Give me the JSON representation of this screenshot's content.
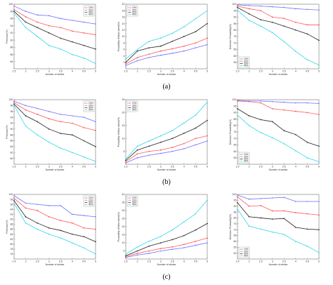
{
  "figure": {
    "row_labels": [
      "(a)",
      "(b)",
      "(c)"
    ]
  },
  "legend_entries": [
    "10%",
    "20%",
    "30%",
    "40%"
  ],
  "series_colors": [
    "#6f6fff",
    "#ff5a5a",
    "#202020",
    "#33d6e6"
  ],
  "chart_data": [
    {
      "type": "line",
      "row": 0,
      "col": 0,
      "xlabel": "Number of strides",
      "ylabel": "Precision(%)",
      "x": [
        1.5,
        2,
        2.5,
        3,
        3.5,
        4,
        4.5,
        5
      ],
      "xticks": [
        1.5,
        2,
        2.5,
        3,
        3.5,
        4,
        4.5,
        5
      ],
      "ylim": [
        82,
        100
      ],
      "yticks": [
        84,
        86,
        88,
        90,
        92,
        94,
        96,
        98,
        100
      ],
      "grid": false,
      "legend": "top-right",
      "series": [
        {
          "name": "10%",
          "values": [
            99.5,
            98,
            97,
            96.8,
            96,
            95.5,
            95,
            94.5
          ]
        },
        {
          "name": "20%",
          "values": [
            98.5,
            96.5,
            95,
            94,
            93.5,
            92.5,
            92,
            91.5
          ]
        },
        {
          "name": "30%",
          "values": [
            98,
            95,
            93.5,
            92,
            90.5,
            89.5,
            88.5,
            87.5
          ]
        },
        {
          "name": "40%",
          "values": [
            97.5,
            93.5,
            91,
            88.5,
            87.5,
            86,
            85,
            83.5
          ]
        }
      ]
    },
    {
      "type": "line",
      "row": 0,
      "col": 1,
      "xlabel": "Number of strides",
      "ylabel": "Probability of false alarm(%)",
      "x": [
        1.5,
        2,
        2.5,
        3,
        3.5,
        4,
        4.5,
        5
      ],
      "xticks": [
        1.5,
        2,
        2.5,
        3,
        3.5,
        4,
        4.5,
        5
      ],
      "ylim": [
        0,
        20
      ],
      "yticks": [
        2,
        4,
        6,
        8,
        10,
        12,
        14,
        16,
        18,
        20
      ],
      "grid": false,
      "legend": "top-left",
      "series": [
        {
          "name": "10%",
          "values": [
            1,
            2.5,
            3.5,
            4.2,
            4.8,
            5.5,
            6.5,
            7.5
          ]
        },
        {
          "name": "20%",
          "values": [
            1.5,
            3.5,
            4.5,
            5.5,
            6.2,
            7,
            8,
            9.5
          ]
        },
        {
          "name": "30%",
          "values": [
            2,
            5.5,
            6.5,
            7,
            8.5,
            10,
            11.5,
            14
          ]
        },
        {
          "name": "40%",
          "values": [
            3,
            6,
            8.5,
            9.5,
            11,
            13,
            15.5,
            18
          ]
        }
      ]
    },
    {
      "type": "line",
      "row": 0,
      "col": 2,
      "xlabel": "Number of strides",
      "ylabel": "Detection Probability(%)",
      "x": [
        1.5,
        2,
        2.5,
        3,
        3.5,
        4,
        4.5,
        5
      ],
      "xticks": [
        1.5,
        2,
        2.5,
        3,
        3.5,
        4,
        4.5,
        5
      ],
      "ylim": [
        50,
        100
      ],
      "yticks": [
        55,
        60,
        65,
        70,
        75,
        80,
        85,
        90,
        95,
        100
      ],
      "grid": false,
      "legend": "bottom-left",
      "series": [
        {
          "name": "10%",
          "values": [
            99.5,
            99,
            98.5,
            98,
            97.5,
            96.5,
            96,
            95.5
          ]
        },
        {
          "name": "20%",
          "values": [
            98.5,
            96.5,
            95,
            90,
            89,
            86,
            84,
            84
          ]
        },
        {
          "name": "30%",
          "values": [
            97.5,
            92.5,
            88,
            86,
            83,
            80,
            77,
            72
          ]
        },
        {
          "name": "40%",
          "values": [
            95.5,
            87.5,
            83,
            78,
            71,
            63.5,
            57,
            53
          ]
        }
      ]
    },
    {
      "type": "line",
      "row": 1,
      "col": 0,
      "xlabel": "Number of strides",
      "ylabel": "Precision(%)",
      "x": [
        1.5,
        2,
        2.5,
        3,
        3.5,
        4,
        4.5,
        5
      ],
      "xticks": [
        1.5,
        2,
        2.5,
        3,
        3.5,
        4,
        4.5,
        5
      ],
      "ylim": [
        78,
        100
      ],
      "yticks": [
        80,
        82,
        84,
        86,
        88,
        90,
        92,
        94,
        96,
        98,
        100
      ],
      "grid": false,
      "legend": "top-right",
      "series": [
        {
          "name": "10%",
          "values": [
            99.5,
            98,
            97,
            96,
            95,
            94.5,
            94,
            92.5
          ]
        },
        {
          "name": "20%",
          "values": [
            99,
            96.5,
            95,
            93.5,
            92.5,
            92,
            90.5,
            89.5
          ]
        },
        {
          "name": "30%",
          "values": [
            98.5,
            94.5,
            92.5,
            90,
            88.5,
            88,
            86,
            84
          ]
        },
        {
          "name": "40%",
          "values": [
            98,
            91,
            88,
            85.5,
            83.5,
            82,
            80.5,
            79
          ]
        }
      ]
    },
    {
      "type": "line",
      "row": 1,
      "col": 1,
      "xlabel": "Number of strides",
      "ylabel": "Probability of false alarm(%)",
      "x": [
        1.5,
        2,
        2.5,
        3,
        3.5,
        4,
        4.5,
        5
      ],
      "xticks": [
        1.5,
        2,
        2.5,
        3,
        3.5,
        4,
        4.5,
        5
      ],
      "ylim": [
        0,
        25
      ],
      "yticks": [
        5,
        10,
        15,
        20,
        25
      ],
      "grid": false,
      "legend": "top-left",
      "series": [
        {
          "name": "10%",
          "values": [
            0.5,
            2.5,
            3.5,
            4.2,
            5,
            6,
            7.5,
            9
          ]
        },
        {
          "name": "20%",
          "values": [
            1,
            4,
            5,
            5.5,
            6.5,
            8,
            10,
            11
          ]
        },
        {
          "name": "30%",
          "values": [
            1.5,
            5.5,
            7,
            8.5,
            10,
            12,
            14,
            17
          ]
        },
        {
          "name": "40%",
          "values": [
            2,
            7,
            9,
            11,
            13,
            16,
            19,
            24
          ]
        }
      ]
    },
    {
      "type": "line",
      "row": 1,
      "col": 2,
      "xlabel": "Number of strides",
      "ylabel": "Detection Probability(%)",
      "x": [
        1.5,
        2,
        2.5,
        3,
        3.5,
        4,
        4.5,
        5
      ],
      "xticks": [
        1.5,
        2,
        2.5,
        3,
        3.5,
        4,
        4.5,
        5
      ],
      "ylim": [
        50,
        100
      ],
      "yticks": [
        55,
        60,
        65,
        70,
        75,
        80,
        85,
        90,
        95,
        100
      ],
      "grid": false,
      "legend": "bottom-left",
      "series": [
        {
          "name": "10%",
          "values": [
            99.5,
            99,
            99,
            98.5,
            98,
            97.5,
            97.5,
            97
          ]
        },
        {
          "name": "20%",
          "values": [
            99,
            98.5,
            97.5,
            93,
            92,
            91,
            90,
            88.5
          ]
        },
        {
          "name": "30%",
          "values": [
            93,
            87.5,
            84.5,
            83,
            76,
            73,
            67,
            64
          ]
        },
        {
          "name": "40%",
          "values": [
            88,
            80,
            74.5,
            70.5,
            66,
            60.5,
            55,
            52
          ]
        }
      ]
    },
    {
      "type": "line",
      "row": 2,
      "col": 0,
      "xlabel": "Number of strides",
      "ylabel": "Precision(%)",
      "x": [
        1.5,
        2,
        2.5,
        3,
        3.5,
        4,
        4.5,
        5
      ],
      "xticks": [
        1.5,
        2,
        2.5,
        3,
        3.5,
        4,
        4.5,
        5
      ],
      "ylim": [
        74,
        100
      ],
      "yticks": [
        76,
        78,
        80,
        82,
        84,
        86,
        88,
        90,
        92,
        94,
        96,
        98,
        100
      ],
      "grid": false,
      "legend": "top-right",
      "series": [
        {
          "name": "10%",
          "values": [
            99.5,
            96.5,
            96,
            95.5,
            95.5,
            92,
            91.5,
            91
          ]
        },
        {
          "name": "20%",
          "values": [
            98.5,
            94.5,
            93.5,
            91,
            89.5,
            88.5,
            86.5,
            86
          ]
        },
        {
          "name": "30%",
          "values": [
            97.5,
            91,
            88.5,
            86.5,
            85.5,
            84,
            83,
            81
          ]
        },
        {
          "name": "40%",
          "values": [
            96.5,
            88.5,
            86,
            84,
            82.5,
            80.5,
            78.5,
            76
          ]
        }
      ]
    },
    {
      "type": "line",
      "row": 2,
      "col": 1,
      "xlabel": "Number of strides",
      "ylabel": "Probability of false alarm(%)",
      "x": [
        1.5,
        2,
        2.5,
        3,
        3.5,
        4,
        4.5,
        5
      ],
      "xticks": [
        1.5,
        2,
        2.5,
        3,
        3.5,
        4,
        4.5,
        5
      ],
      "ylim": [
        0,
        40
      ],
      "yticks": [
        5,
        10,
        15,
        20,
        25,
        30,
        35,
        40
      ],
      "grid": false,
      "legend": "top-left",
      "series": [
        {
          "name": "10%",
          "values": [
            1,
            2.5,
            3.5,
            5,
            6,
            7,
            8.5,
            10
          ]
        },
        {
          "name": "20%",
          "values": [
            1.5,
            3.5,
            5,
            6.5,
            7.5,
            9,
            11,
            13
          ]
        },
        {
          "name": "30%",
          "values": [
            2,
            5,
            8,
            10,
            12,
            14.5,
            18,
            22
          ]
        },
        {
          "name": "40%",
          "values": [
            3,
            7.5,
            11,
            14,
            18,
            23,
            28,
            36.5
          ]
        }
      ]
    },
    {
      "type": "line",
      "row": 2,
      "col": 2,
      "xlabel": "Number of strides",
      "ylabel": "Detection Probability(%)",
      "x": [
        1.5,
        2,
        2.5,
        3,
        3.5,
        4,
        4.5,
        5
      ],
      "xticks": [
        1.5,
        2,
        2.5,
        3,
        3.5,
        4,
        4.5,
        5
      ],
      "ylim": [
        45,
        100
      ],
      "yticks": [
        50,
        55,
        60,
        65,
        70,
        75,
        80,
        85,
        90,
        95,
        100
      ],
      "grid": false,
      "legend": "bottom-left",
      "series": [
        {
          "name": "10%",
          "values": [
            99.5,
            96,
            96.5,
            97,
            97.5,
            94,
            94,
            94
          ]
        },
        {
          "name": "20%",
          "values": [
            98,
            90,
            90.5,
            86,
            86,
            84.5,
            83.5,
            82.5
          ]
        },
        {
          "name": "30%",
          "values": [
            93,
            81,
            80,
            79,
            79.5,
            72,
            70.5,
            70
          ]
        },
        {
          "name": "40%",
          "values": [
            87.5,
            73,
            70.5,
            68,
            66,
            60,
            56,
            50.5
          ]
        }
      ]
    }
  ]
}
